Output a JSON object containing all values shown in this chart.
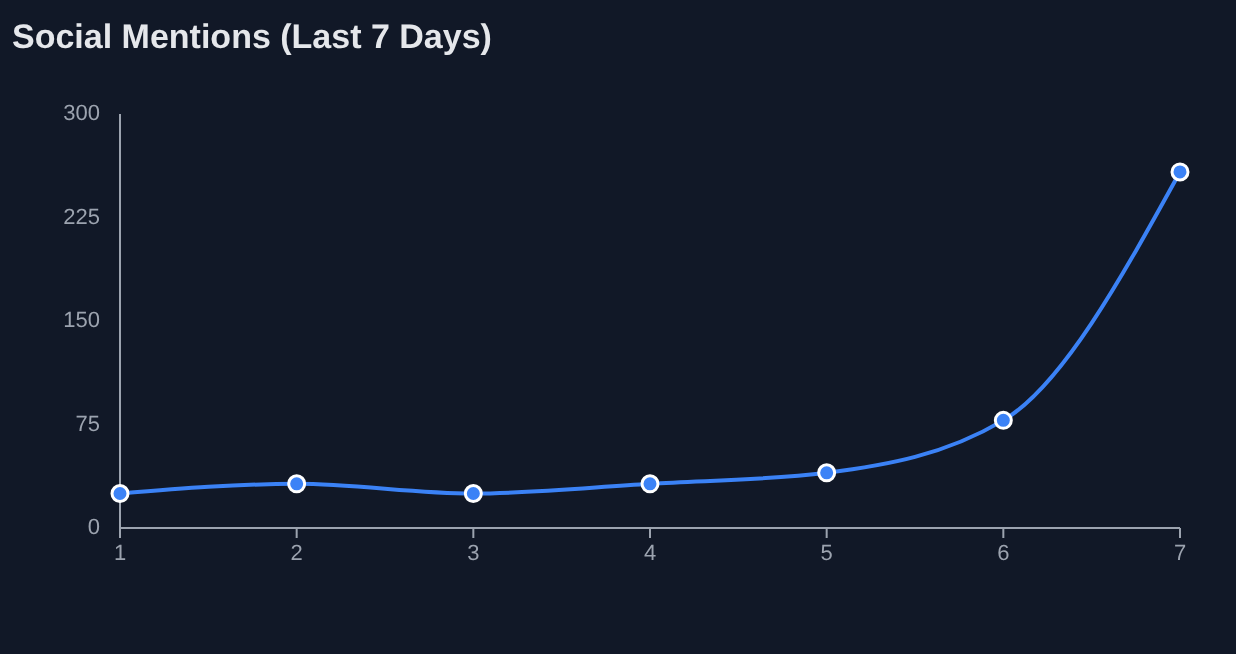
{
  "chart_data": {
    "type": "line",
    "title": "Social Mentions (Last 7 Days)",
    "x": [
      1,
      2,
      3,
      4,
      5,
      6,
      7
    ],
    "series": [
      {
        "color": "#3b82f6",
        "values": [
          25,
          32,
          25,
          32,
          40,
          78,
          258
        ]
      }
    ],
    "xlim": [
      1,
      7
    ],
    "xticks": [
      1,
      2,
      3,
      4,
      5,
      6,
      7
    ],
    "ylim": [
      0,
      300
    ],
    "yticks": [
      0,
      75,
      150,
      225,
      300
    ],
    "grid": false,
    "marker": "circle",
    "line_style": "solid"
  }
}
